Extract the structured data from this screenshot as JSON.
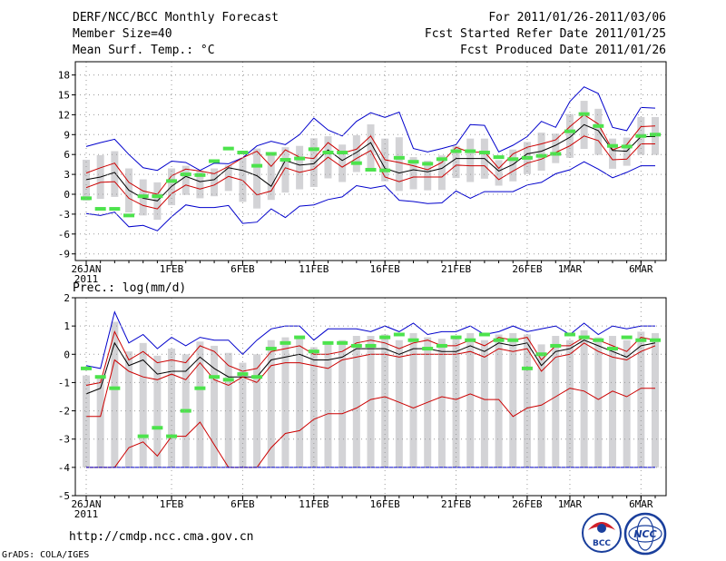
{
  "header": {
    "title": "DERF/NCC/BCC Monthly Forecast",
    "member_size": "Member Size=40",
    "variable": "Mean Surf. Temp.: °C",
    "forecast_period": "For 2011/01/26-2011/03/06",
    "started_refer_date": "Fcst Started Refer Date 2011/01/25",
    "produced_date": "Fcst Produced Date 2011/01/26"
  },
  "footer": {
    "url": "http://cmdp.ncc.cma.gov.cn",
    "credit": "GrADS: COLA/IGES",
    "logo_bcc": "BCC",
    "logo_ncc": "NCC"
  },
  "colors": {
    "max_min": "#0000cc",
    "spread": "#cc0000",
    "mean": "#000000",
    "observed": "#4ce34c",
    "ensemble_bar": "#d3d3d6",
    "grid": "#9a9a9a"
  },
  "chart_data": [
    {
      "type": "line",
      "title": "Mean Surf. Temp.: °C",
      "x_tick_labels": [
        "26JAN",
        "1FEB",
        "6FEB",
        "11FEB",
        "16FEB",
        "21FEB",
        "26FEB",
        "1MAR",
        "6MAR"
      ],
      "x_tick_days": [
        0,
        6,
        11,
        16,
        21,
        26,
        31,
        34,
        39
      ],
      "year_label": "2011",
      "ylim": [
        -10,
        20
      ],
      "y_ticks": [
        -9,
        -6,
        -3,
        0,
        3,
        6,
        9,
        12,
        15,
        18
      ],
      "y_tick_labels": [
        "-9",
        "-6",
        "-3",
        "0",
        "3",
        "6",
        "9",
        "12",
        "15",
        "18"
      ],
      "series": [
        {
          "name": "max",
          "style": "blue",
          "values": [
            7.2,
            7.8,
            8.3,
            6,
            4,
            3.6,
            5,
            4.8,
            3.6,
            4.7,
            4.6,
            5.5,
            7.3,
            8,
            7.5,
            9,
            11.5,
            9.7,
            8.8,
            11,
            12.3,
            11.6,
            12.4,
            6.9,
            6.4,
            6.9,
            7.5,
            10.5,
            10.4,
            6.4,
            7.4,
            8.7,
            11,
            10.1,
            14,
            16.2,
            15.2,
            10.1,
            9.6,
            13.1,
            13
          ]
        },
        {
          "name": "upper_spread",
          "style": "red",
          "values": [
            3.2,
            4,
            4.7,
            1.8,
            0.5,
            0,
            2.8,
            3.8,
            3.5,
            3.1,
            4.2,
            5.5,
            6.5,
            4.2,
            6.7,
            5.6,
            5.4,
            7.8,
            6.2,
            6.8,
            8.8,
            5.2,
            4.8,
            4.3,
            3.7,
            4.8,
            7.1,
            6.3,
            6.4,
            3.9,
            6.1,
            7.1,
            7.6,
            8.2,
            10.2,
            12,
            10.6,
            6.7,
            7.5,
            10.2,
            10.3
          ]
        },
        {
          "name": "mean",
          "style": "black",
          "values": [
            2.2,
            2.6,
            3.3,
            0.6,
            -0.6,
            -1,
            1.2,
            2.7,
            1.9,
            2.2,
            4,
            3.6,
            2.8,
            1.2,
            5.1,
            4.4,
            4.6,
            6.7,
            5.1,
            6.3,
            7.8,
            3.9,
            3.2,
            3.7,
            3.4,
            3.9,
            5.4,
            5.4,
            5.4,
            3.5,
            4.5,
            6.1,
            6.5,
            7.4,
            8.6,
            10.5,
            9.6,
            6.6,
            6.5,
            8.7,
            8.7
          ]
        },
        {
          "name": "lower_spread",
          "style": "red",
          "values": [
            1,
            1.8,
            1.9,
            -0.6,
            -1.7,
            -2.2,
            0.1,
            1.4,
            0.8,
            1.4,
            2.7,
            2.1,
            -0.1,
            0.5,
            4,
            3.3,
            3.8,
            5.6,
            4.1,
            5.4,
            6.6,
            2.6,
            1.9,
            2.6,
            2.6,
            2.6,
            4.4,
            4.3,
            4.3,
            2.2,
            3.5,
            4.7,
            5.3,
            6.3,
            7.3,
            8.8,
            8.1,
            5.2,
            5.3,
            7.6,
            7.6
          ]
        },
        {
          "name": "min",
          "style": "blue",
          "values": [
            -2.9,
            -3.2,
            -2.7,
            -4.9,
            -4.7,
            -5.5,
            -3.4,
            -1.6,
            -2,
            -2,
            -1.7,
            -4.4,
            -4.2,
            -2.2,
            -3.5,
            -1.8,
            -1.6,
            -0.8,
            -0.4,
            1.3,
            0.9,
            1.3,
            -0.9,
            -1.1,
            -1.4,
            -1.3,
            0.5,
            -0.6,
            0.4,
            0.4,
            0.4,
            1.4,
            1.8,
            3.1,
            3.7,
            4.9,
            3.8,
            2.5,
            3.3,
            4.3,
            4.3
          ]
        }
      ],
      "observed": [
        -0.6,
        -2.2,
        -2.2,
        -3.2,
        -0.3,
        -0.3,
        2,
        3,
        2.9,
        5,
        6.9,
        6.3,
        4.3,
        6.1,
        5.2,
        5.4,
        6.8,
        6.3,
        6.3,
        4.7,
        3.7,
        3.6,
        5.5,
        4.9,
        4.6,
        5.3,
        6.5,
        6.5,
        6.3,
        5.6,
        5.3,
        5.5,
        5.8,
        6.1,
        9.5,
        12.1,
        10.3,
        7.3,
        7.2,
        8.8,
        9
      ]
    },
    {
      "type": "line",
      "title": "Prec.: log(mm/d)",
      "x_tick_labels": [
        "26JAN",
        "1FEB",
        "6FEB",
        "11FEB",
        "16FEB",
        "21FEB",
        "26FEB",
        "1MAR",
        "6MAR"
      ],
      "x_tick_days": [
        0,
        6,
        11,
        16,
        21,
        26,
        31,
        34,
        39
      ],
      "year_label": "2011",
      "ylim": [
        -5,
        2
      ],
      "y_ticks": [
        -5,
        -4,
        -3,
        -2,
        -1,
        0,
        1,
        2
      ],
      "y_tick_labels": [
        "-5",
        "-4",
        "-3",
        "-2",
        "-1",
        "0",
        "1",
        "2"
      ],
      "series": [
        {
          "name": "max",
          "style": "blue",
          "values": [
            -0.4,
            -0.5,
            1.5,
            0.4,
            0.7,
            0.2,
            0.6,
            0.3,
            0.6,
            0.5,
            0.5,
            0,
            0.5,
            0.9,
            1,
            1,
            0.5,
            0.9,
            0.9,
            0.9,
            0.8,
            1,
            0.8,
            1.1,
            0.7,
            0.8,
            0.8,
            1,
            0.7,
            0.8,
            1,
            0.8,
            0.9,
            1,
            0.7,
            1.1,
            0.7,
            1,
            0.9,
            1,
            1
          ]
        },
        {
          "name": "upper_spread",
          "style": "red",
          "values": [
            -1.1,
            -1,
            0.8,
            -0.2,
            0.1,
            -0.3,
            -0.2,
            -0.3,
            0.3,
            0.1,
            -0.4,
            -0.6,
            -0.5,
            0.1,
            0.2,
            0.3,
            0,
            0,
            0.1,
            0.4,
            0.5,
            0.4,
            0.2,
            0.4,
            0.5,
            0.3,
            0.3,
            0.5,
            0.3,
            0.6,
            0.5,
            0.6,
            -0.2,
            0.3,
            0.3,
            0.6,
            0.5,
            0.3,
            0.1,
            0.6,
            0.5
          ]
        },
        {
          "name": "mean",
          "style": "black",
          "values": [
            -1.4,
            -1.2,
            0.4,
            -0.4,
            -0.2,
            -0.7,
            -0.6,
            -0.6,
            -0.1,
            -0.5,
            -0.8,
            -0.8,
            -0.8,
            -0.2,
            -0.1,
            0,
            -0.2,
            -0.2,
            -0.1,
            0.2,
            0.2,
            0.2,
            0,
            0.2,
            0.2,
            0.1,
            0.1,
            0.3,
            0.1,
            0.4,
            0.3,
            0.4,
            -0.4,
            0.1,
            0.2,
            0.5,
            0.3,
            0.1,
            -0.1,
            0.3,
            0.4
          ]
        },
        {
          "name": "lower_spread",
          "style": "red",
          "values": [
            -2.2,
            -2.2,
            -0.2,
            -0.6,
            -0.8,
            -0.9,
            -0.7,
            -0.9,
            -0.3,
            -0.9,
            -1.1,
            -0.8,
            -1,
            -0.4,
            -0.3,
            -0.3,
            -0.4,
            -0.5,
            -0.2,
            -0.1,
            0,
            0,
            -0.1,
            0,
            0,
            0,
            0,
            0.1,
            -0.1,
            0.2,
            0.1,
            0.2,
            -0.6,
            -0.1,
            0,
            0.4,
            0.1,
            -0.1,
            -0.2,
            0.1,
            0.3
          ]
        },
        {
          "name": "lower_ensemble",
          "style": "red",
          "values": [
            -4,
            -4,
            -4,
            -3.3,
            -3.1,
            -3.6,
            -2.9,
            -2.9,
            -2.4,
            -3.2,
            -4,
            -4,
            -4,
            -3.3,
            -2.8,
            -2.7,
            -2.3,
            -2.1,
            -2.1,
            -1.9,
            -1.6,
            -1.5,
            -1.7,
            -1.9,
            -1.7,
            -1.5,
            -1.6,
            -1.4,
            -1.6,
            -1.6,
            -2.2,
            -1.9,
            -1.8,
            -1.5,
            -1.2,
            -1.3,
            -1.6,
            -1.3,
            -1.5,
            -1.2,
            -1.2
          ]
        },
        {
          "name": "min",
          "style": "blue",
          "values": [
            -4,
            -4,
            -4,
            -4,
            -4,
            -4,
            -4,
            -4,
            -4,
            -4,
            -4,
            -4,
            -4,
            -4,
            -4,
            -4,
            -4,
            -4,
            -4,
            -4,
            -4,
            -4,
            -4,
            -4,
            -4,
            -4,
            -4,
            -4,
            -4,
            -4,
            -4,
            -4,
            -4,
            -4,
            -4,
            -4,
            -4,
            -4,
            -4,
            -4,
            -4
          ]
        }
      ],
      "observed": [
        -0.5,
        -0.8,
        -1.2,
        null,
        -2.9,
        -2.6,
        -2.9,
        -2.0,
        -1.2,
        -0.8,
        -0.9,
        -0.7,
        -0.8,
        0.2,
        0.4,
        0.6,
        0.1,
        0.4,
        0.4,
        0.3,
        0.3,
        0.6,
        0.7,
        0.5,
        0.2,
        0.3,
        0.6,
        0.5,
        0.7,
        0.5,
        0.5,
        -0.5,
        0,
        0.3,
        0.7,
        0.6,
        0.5,
        0.2,
        0.6,
        0.5,
        0.5
      ]
    }
  ]
}
